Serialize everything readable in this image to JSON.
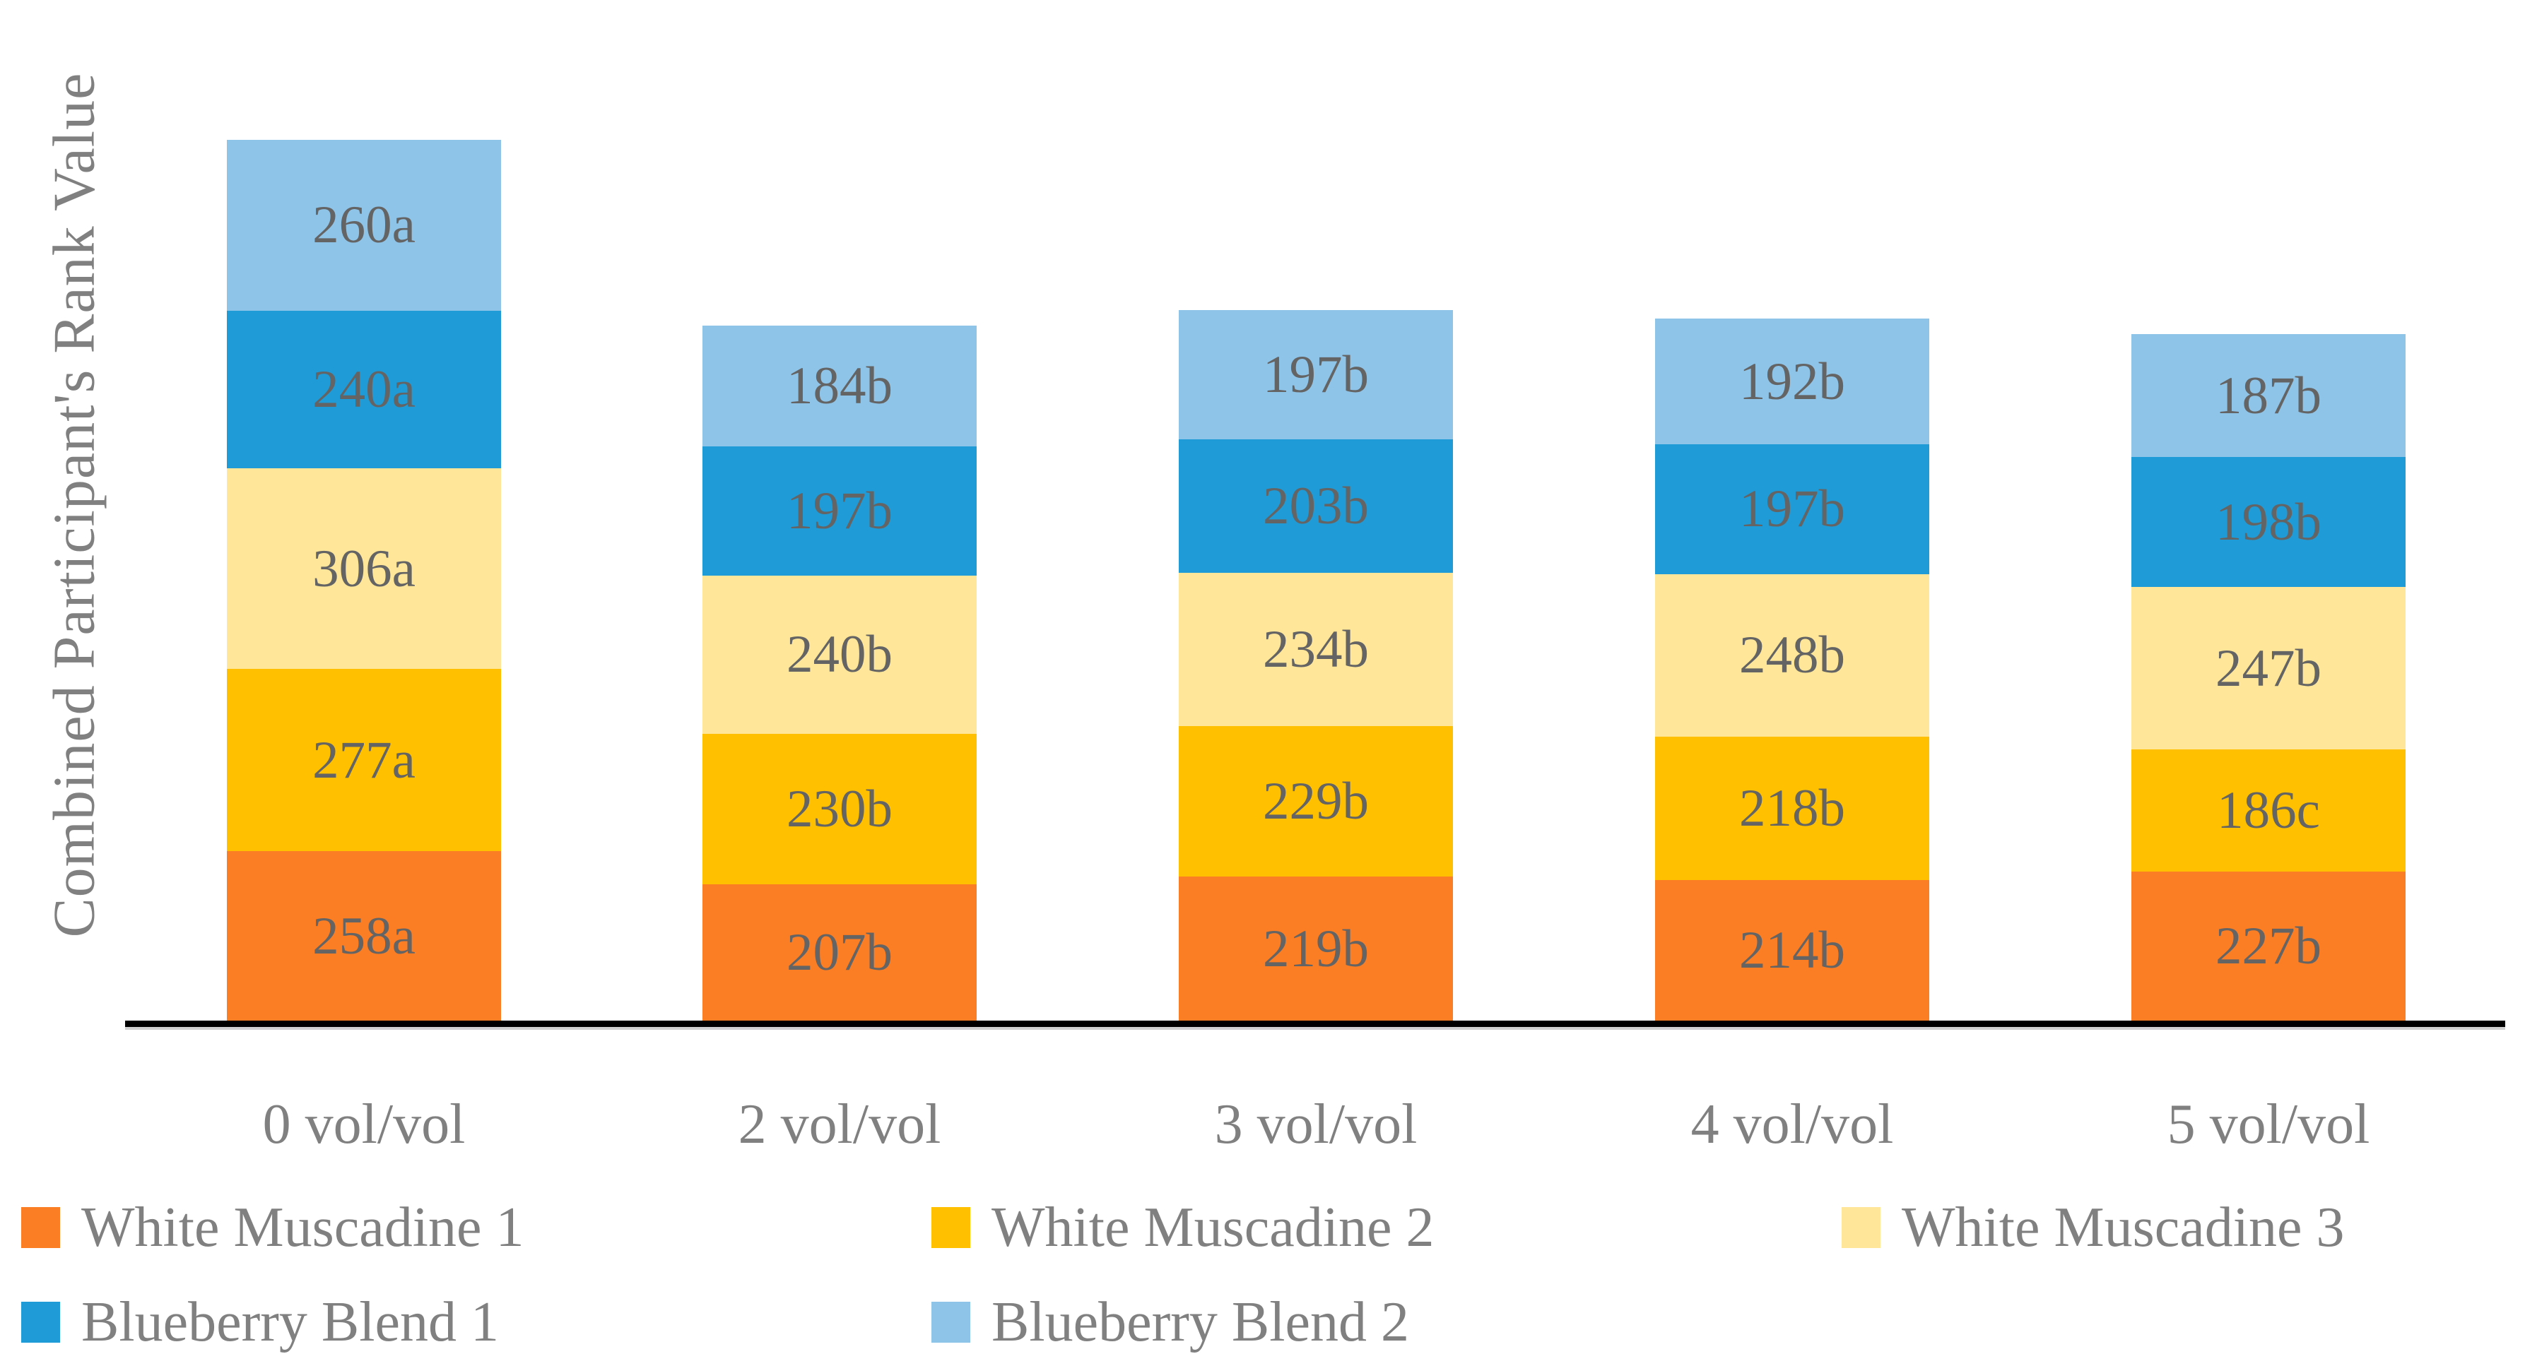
{
  "chart_data": {
    "type": "bar",
    "stacked": true,
    "title": "",
    "xlabel": "",
    "ylabel": "Combined Participant's Rank Value",
    "grid": false,
    "y_axis_visible": false,
    "legend_position": "bottom",
    "categories": [
      "0 vol/vol",
      "2 vol/vol",
      "3 vol/vol",
      "4 vol/vol",
      "5 vol/vol"
    ],
    "series": [
      {
        "name": "White Muscadine 1",
        "color": "#FB7D24",
        "values": [
          258,
          207,
          219,
          214,
          227
        ],
        "labels": [
          "258a",
          "207b",
          "219b",
          "214b",
          "227b"
        ]
      },
      {
        "name": "White Muscadine 2",
        "color": "#FFC000",
        "values": [
          277,
          230,
          229,
          218,
          186
        ],
        "labels": [
          "277a",
          "230b",
          "229b",
          "218b",
          "186c"
        ]
      },
      {
        "name": "White Muscadine 3",
        "color": "#FFE699",
        "values": [
          306,
          240,
          234,
          248,
          247
        ],
        "labels": [
          "306a",
          "240b",
          "234b",
          "248b",
          "247b"
        ]
      },
      {
        "name": "Blueberry Blend 1",
        "color": "#1F9CD8",
        "values": [
          240,
          197,
          203,
          197,
          198
        ],
        "labels": [
          "240a",
          "197b",
          "203b",
          "197b",
          "198b"
        ]
      },
      {
        "name": "Blueberry Blend 2",
        "color": "#8FC4E9",
        "values": [
          260,
          184,
          197,
          192,
          187
        ],
        "labels": [
          "260a",
          "184b",
          "197b",
          "192b",
          "187b"
        ]
      }
    ],
    "colors": {
      "axis_line": "#000000",
      "data_label_text": "#646464",
      "axis_text": "#808080",
      "background": "#FFFFFF"
    }
  }
}
